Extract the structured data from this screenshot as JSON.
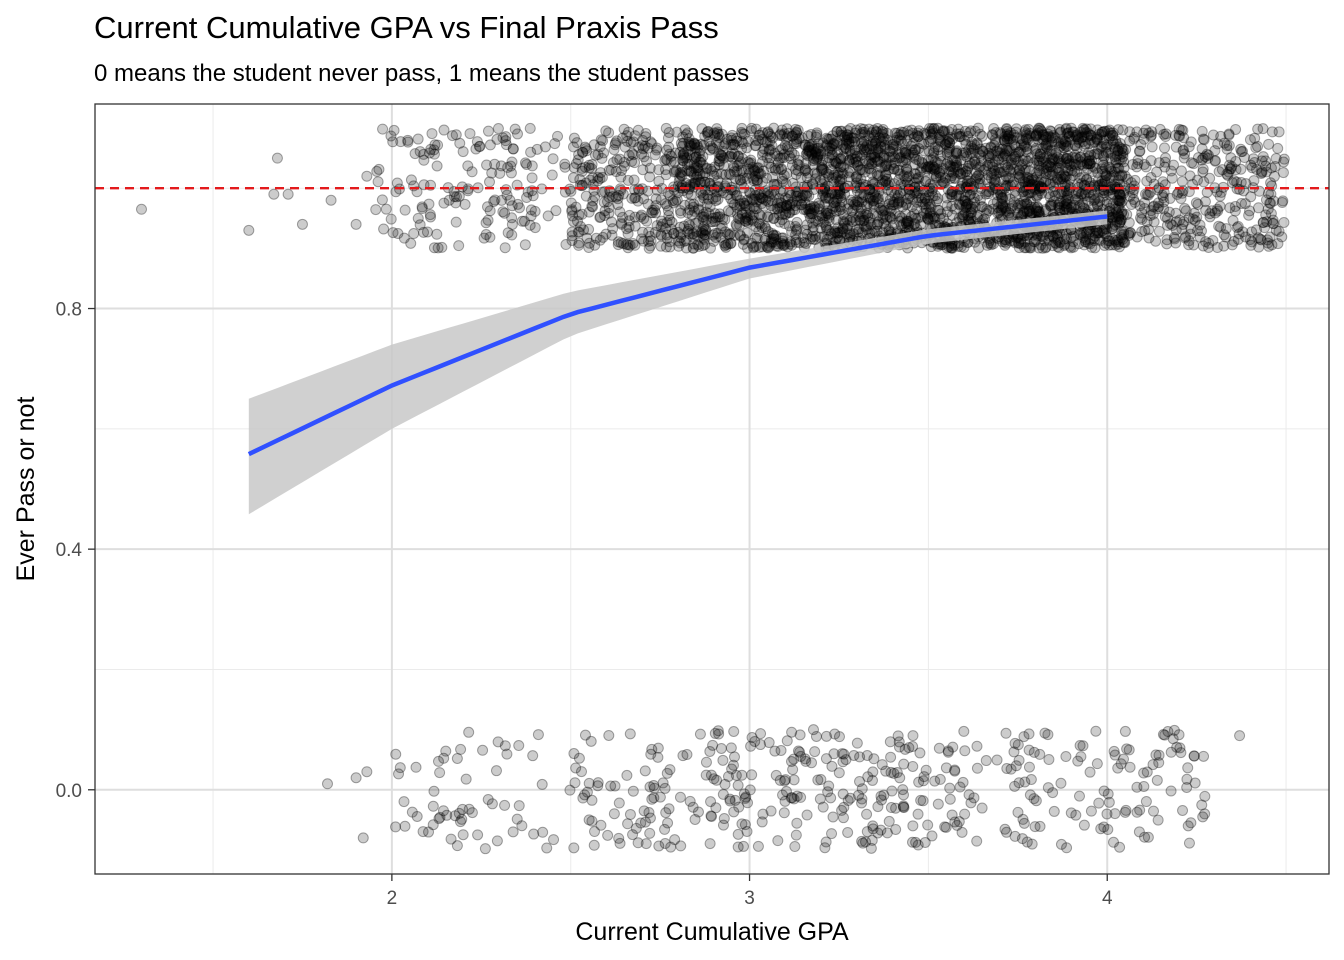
{
  "chart_data": {
    "type": "scatter",
    "title": "Current Cumulative GPA vs Final Praxis Pass",
    "subtitle": "0 means the student never pass, 1 means the student passes",
    "xlabel": "Current Cumulative GPA",
    "ylabel": "Ever Pass or not",
    "xlim": [
      1.17,
      4.62
    ],
    "ylim": [
      -0.14,
      1.14
    ],
    "x_ticks": [
      2,
      3,
      4
    ],
    "y_ticks": [
      0.0,
      0.4,
      0.8
    ],
    "y_tick_labels": [
      "0.0",
      "0.4",
      "0.8"
    ],
    "x_tick_labels": [
      "2",
      "3",
      "4"
    ],
    "grid": true,
    "jitter": {
      "height": 0.1
    },
    "reference_line": {
      "y": 1.0,
      "color": "#e31a1c",
      "style": "dashed"
    },
    "fit_curve": {
      "method": "logistic",
      "color": "#3050ff",
      "band_color": "#c8c8c8",
      "x": [
        1.6,
        2.0,
        2.5,
        3.0,
        3.5,
        4.0
      ],
      "y": [
        0.558,
        0.672,
        0.791,
        0.868,
        0.921,
        0.953
      ],
      "lower": [
        0.458,
        0.6,
        0.755,
        0.85,
        0.908,
        0.94
      ],
      "upper": [
        0.65,
        0.74,
        0.828,
        0.883,
        0.932,
        0.963
      ]
    },
    "points_pass": {
      "y_level": 1,
      "outliers": [
        [
          1.3,
          0.965
        ],
        [
          1.6,
          0.93
        ],
        [
          1.68,
          1.05
        ],
        [
          1.67,
          0.99
        ],
        [
          1.71,
          0.99
        ],
        [
          1.75,
          0.94
        ],
        [
          1.83,
          0.98
        ],
        [
          1.9,
          0.94
        ],
        [
          1.93,
          1.02
        ]
      ],
      "clusters": [
        {
          "x_min": 1.95,
          "x_max": 2.5,
          "count": 160
        },
        {
          "x_min": 2.5,
          "x_max": 2.8,
          "count": 260
        },
        {
          "x_min": 2.8,
          "x_max": 3.2,
          "count": 700
        },
        {
          "x_min": 3.2,
          "x_max": 3.8,
          "count": 1300
        },
        {
          "x_min": 3.8,
          "x_max": 4.05,
          "count": 650
        },
        {
          "x_min": 4.05,
          "x_max": 4.5,
          "count": 330
        }
      ]
    },
    "points_fail": {
      "y_level": 0,
      "outliers": [
        [
          1.82,
          0.01
        ],
        [
          1.9,
          0.02
        ],
        [
          1.92,
          -0.08
        ],
        [
          1.93,
          0.03
        ],
        [
          4.37,
          0.09
        ]
      ],
      "clusters": [
        {
          "x_min": 2.0,
          "x_max": 2.5,
          "count": 60
        },
        {
          "x_min": 2.5,
          "x_max": 3.0,
          "count": 120
        },
        {
          "x_min": 3.0,
          "x_max": 3.6,
          "count": 170
        },
        {
          "x_min": 3.6,
          "x_max": 4.28,
          "count": 130
        }
      ]
    }
  }
}
